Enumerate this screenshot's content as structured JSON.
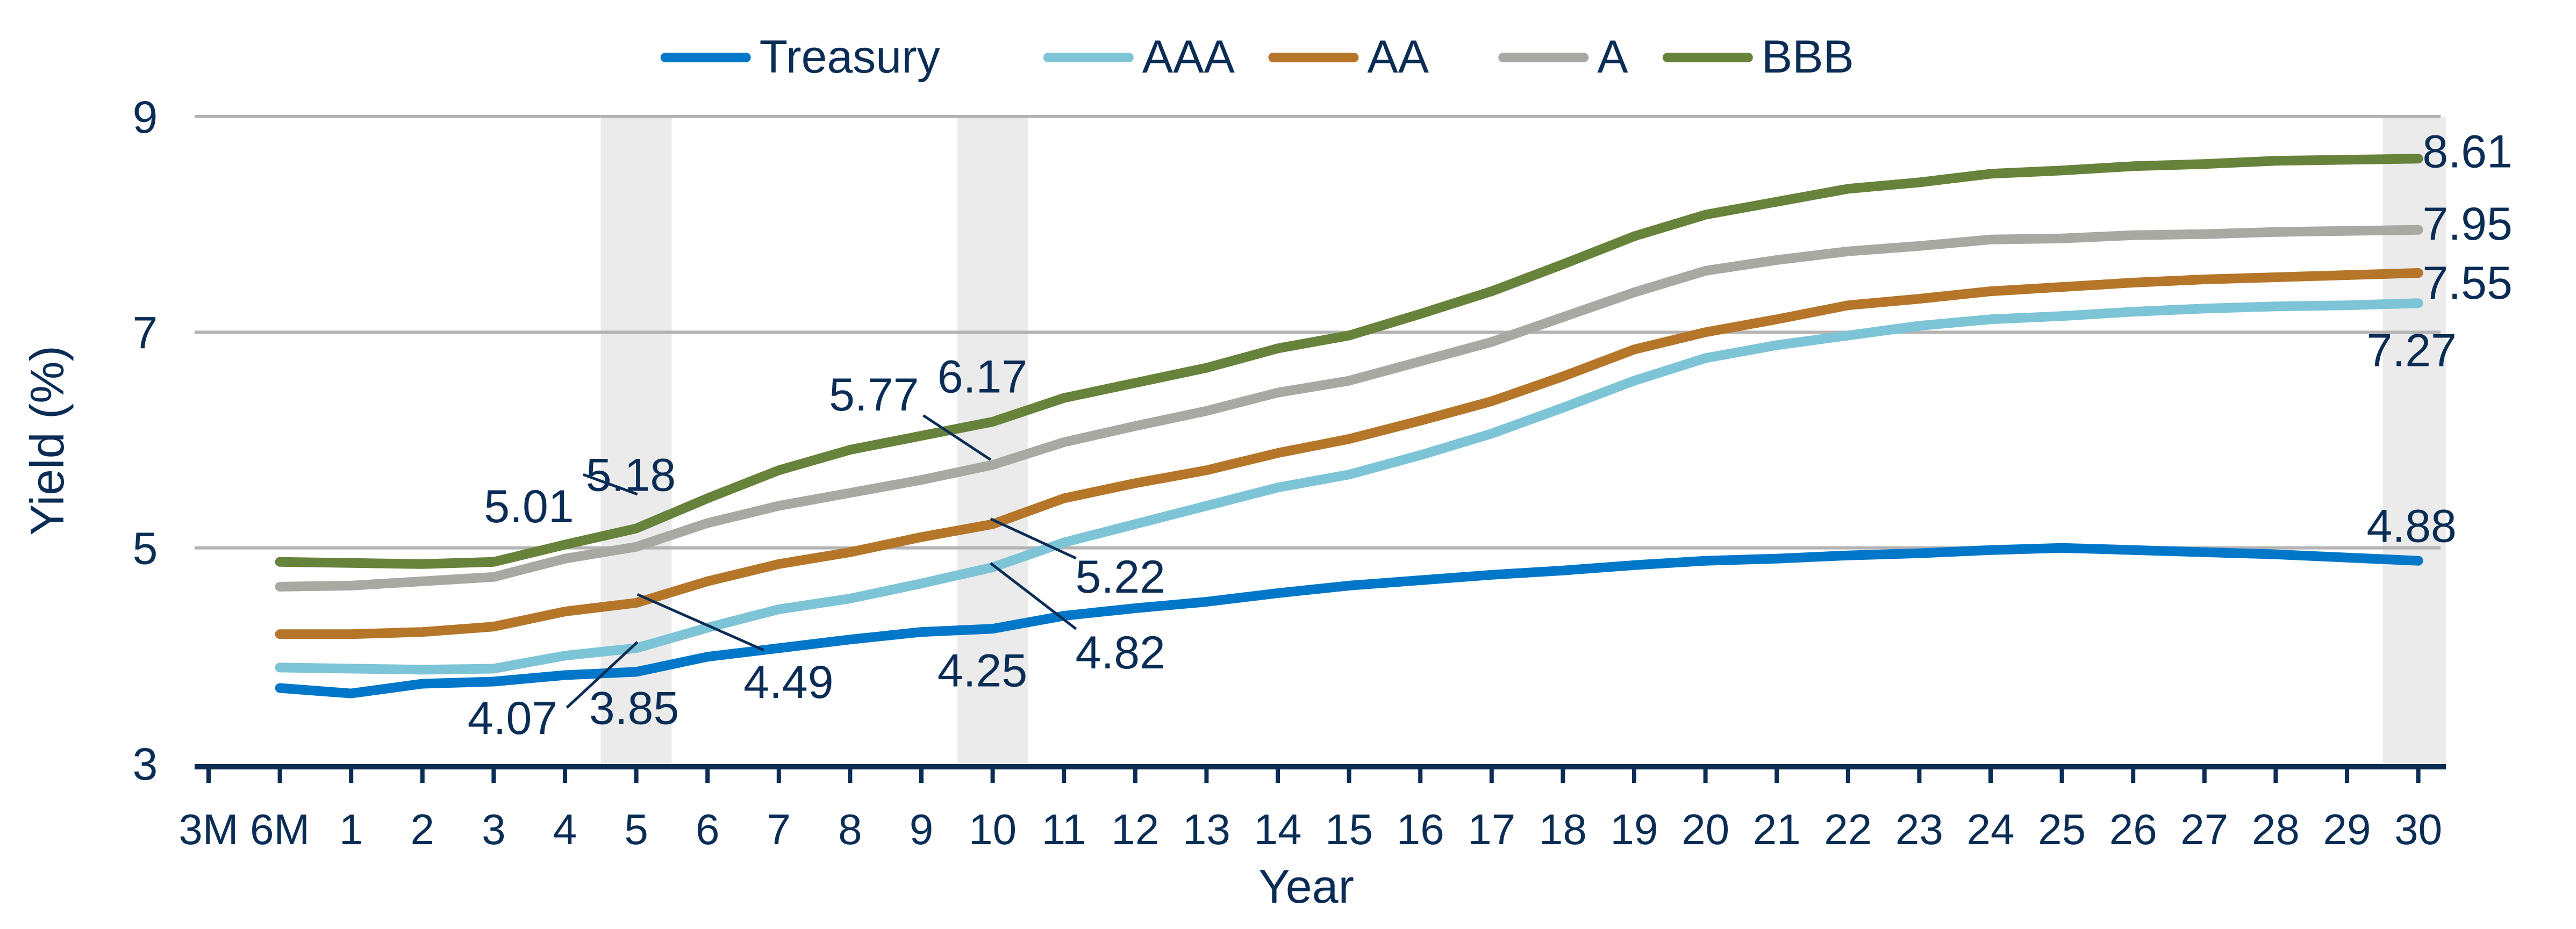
{
  "chart_data": {
    "type": "line",
    "title": "",
    "xlabel": "Year",
    "ylabel": "Yield (%)",
    "ylim": [
      3,
      9
    ],
    "yticks": [
      3,
      5,
      7,
      9
    ],
    "grid": "horizontal",
    "legend_placement": "top",
    "categories": [
      "3M",
      "6M",
      "1",
      "2",
      "3",
      "4",
      "5",
      "6",
      "7",
      "8",
      "9",
      "10",
      "11",
      "12",
      "13",
      "14",
      "15",
      "16",
      "17",
      "18",
      "19",
      "20",
      "21",
      "22",
      "23",
      "24",
      "25",
      "26",
      "27",
      "28",
      "29",
      "30"
    ],
    "highlighted_categories": [
      "5",
      "10",
      "30"
    ],
    "series": [
      {
        "name": "Treasury",
        "color": "#0077c8",
        "values": [
          null,
          3.7,
          3.65,
          3.74,
          3.76,
          3.82,
          3.85,
          3.99,
          4.07,
          4.15,
          4.22,
          4.25,
          4.37,
          4.44,
          4.5,
          4.58,
          4.65,
          4.7,
          4.75,
          4.79,
          4.84,
          4.88,
          4.9,
          4.93,
          4.95,
          4.98,
          5.0,
          4.98,
          4.96,
          4.94,
          4.91,
          4.88
        ]
      },
      {
        "name": "AAA",
        "color": "#7cc4d6",
        "values": [
          null,
          3.89,
          3.88,
          3.87,
          3.88,
          4.0,
          4.07,
          4.26,
          4.43,
          4.53,
          4.67,
          4.82,
          5.05,
          5.22,
          5.39,
          5.56,
          5.68,
          5.86,
          6.06,
          6.3,
          6.55,
          6.76,
          6.88,
          6.97,
          7.06,
          7.12,
          7.15,
          7.19,
          7.22,
          7.24,
          7.25,
          7.27
        ]
      },
      {
        "name": "AA",
        "color": "#b5762a",
        "values": [
          null,
          4.2,
          4.2,
          4.22,
          4.27,
          4.41,
          4.49,
          4.69,
          4.85,
          4.96,
          5.1,
          5.22,
          5.46,
          5.6,
          5.72,
          5.88,
          6.01,
          6.18,
          6.36,
          6.59,
          6.84,
          7.0,
          7.12,
          7.25,
          7.31,
          7.38,
          7.42,
          7.46,
          7.49,
          7.51,
          7.53,
          7.55
        ]
      },
      {
        "name": "A",
        "color": "#a9a9a4",
        "values": [
          null,
          4.64,
          4.65,
          4.69,
          4.73,
          4.9,
          5.01,
          5.23,
          5.39,
          5.51,
          5.63,
          5.77,
          5.98,
          6.13,
          6.27,
          6.44,
          6.55,
          6.73,
          6.91,
          7.14,
          7.37,
          7.57,
          7.67,
          7.75,
          7.8,
          7.86,
          7.87,
          7.9,
          7.91,
          7.93,
          7.94,
          7.95
        ]
      },
      {
        "name": "BBB",
        "color": "#67823a",
        "values": [
          null,
          4.87,
          4.86,
          4.85,
          4.87,
          5.03,
          5.18,
          5.46,
          5.72,
          5.91,
          6.04,
          6.17,
          6.39,
          6.53,
          6.67,
          6.85,
          6.97,
          7.17,
          7.38,
          7.63,
          7.89,
          8.09,
          8.21,
          8.33,
          8.39,
          8.47,
          8.5,
          8.54,
          8.56,
          8.59,
          8.6,
          8.61
        ]
      }
    ],
    "data_labels": [
      "5.01",
      "5.18",
      "4.07",
      "3.85",
      "4.49",
      "5.77",
      "6.17",
      "5.22",
      "4.82",
      "4.25",
      "8.61",
      "7.95",
      "7.55",
      "7.27",
      "4.88"
    ]
  },
  "colors": {
    "text": "#0b2d55",
    "grid": "#b4b4b4",
    "band": "#ebebeb",
    "axis": "#0b2d55"
  }
}
